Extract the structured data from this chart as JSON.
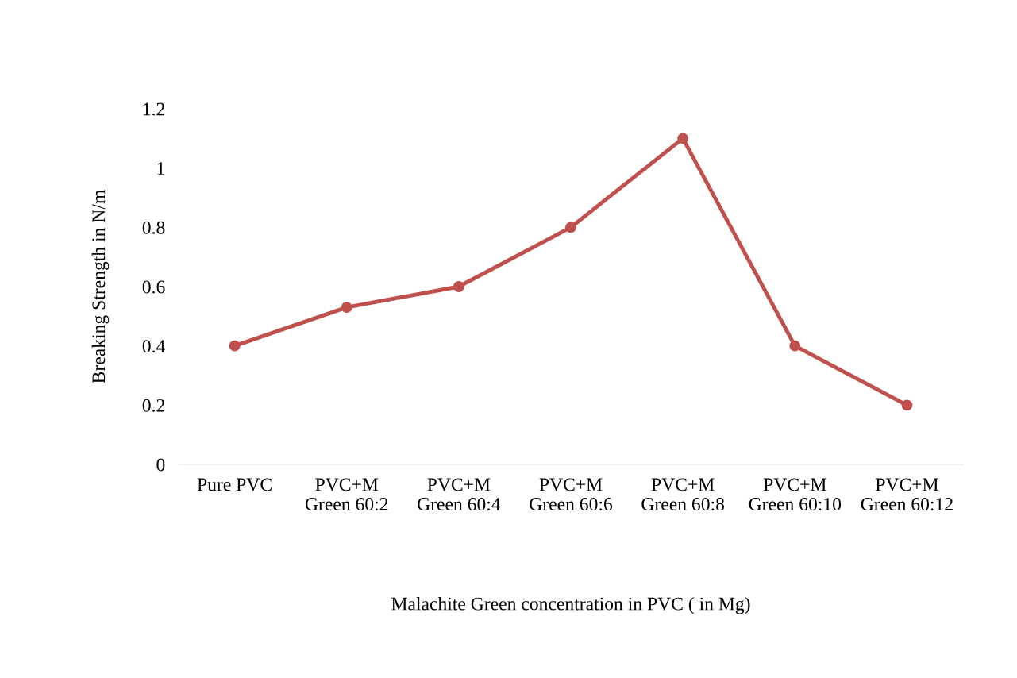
{
  "chart_data": {
    "type": "line",
    "xlabel": "Malachite Green concentration in PVC ( in Mg)",
    "ylabel": "Breaking Strength in N/m",
    "categories": [
      "Pure PVC",
      "PVC+M\nGreen 60:2",
      "PVC+M\nGreen 60:4",
      "PVC+M\nGreen 60:6",
      "PVC+M\nGreen 60:8",
      "PVC+M\nGreen 60:10",
      "PVC+M\nGreen 60:12"
    ],
    "series": [
      {
        "color": "#c0504d",
        "values": [
          0.4,
          0.53,
          0.6,
          0.8,
          1.1,
          0.4,
          0.2
        ]
      }
    ],
    "ylim": [
      0,
      1.2
    ],
    "yticks": [
      0,
      0.2,
      0.4,
      0.6,
      0.8,
      1,
      1.2
    ],
    "grid": false,
    "legend": false,
    "marker": "circle",
    "line_style": "solid"
  }
}
